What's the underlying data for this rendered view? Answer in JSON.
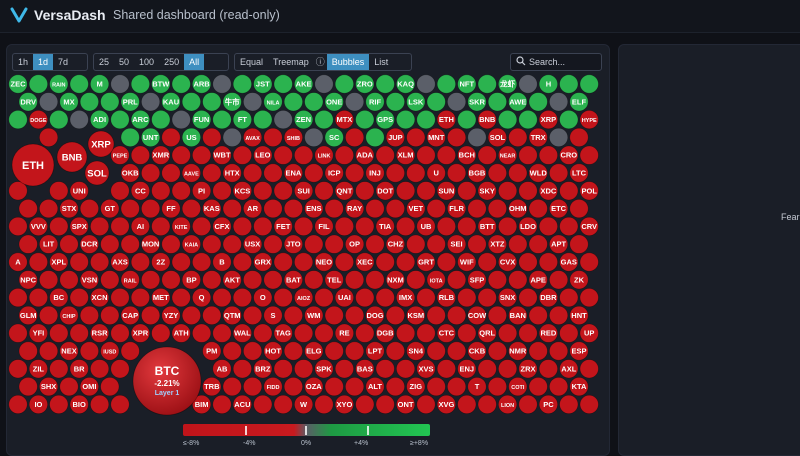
{
  "app": {
    "name": "VersaDash",
    "subtitle": "Shared dashboard (read-only)"
  },
  "toolbar": {
    "timeframes": [
      "1h",
      "1d",
      "7d"
    ],
    "active_timeframe": "1d",
    "counts": [
      "25",
      "50",
      "100",
      "250",
      "All"
    ],
    "active_count": "All",
    "views": [
      "Equal",
      "Treemap",
      "ⓘ",
      "Bubbles",
      "List"
    ],
    "active_view": "Bubbles",
    "search_placeholder": "Search..."
  },
  "side_panel": {
    "label": "Fear"
  },
  "btc": {
    "symbol": "BTC",
    "change": "-2.21%",
    "layer": "Layer 1"
  },
  "legend": {
    "labels": [
      "≤-8%",
      "-4%",
      "0%",
      "+4%",
      "≥+8%"
    ]
  },
  "colors": {
    "red": "#c3151b",
    "green": "#2bb34f",
    "gray": "#5b5f69",
    "accent": "#3e8fc0"
  },
  "bubbles": [
    {
      "s": "ZEC",
      "c": "green"
    },
    {
      "s": "RAIN",
      "c": "green"
    },
    {
      "s": "M",
      "c": "green"
    },
    {
      "s": "BTW",
      "c": "green"
    },
    {
      "s": "ARB",
      "c": "green"
    },
    {
      "s": "JST",
      "c": "green"
    },
    {
      "s": "AKE",
      "c": "green"
    },
    {
      "s": "ZRO",
      "c": "green"
    },
    {
      "s": "KAQ",
      "c": "green"
    },
    {
      "s": "NFT",
      "c": "green"
    },
    {
      "s": "龙虾",
      "c": "green"
    },
    {
      "s": "H",
      "c": "green"
    },
    {
      "s": "DRV",
      "c": "green"
    },
    {
      "s": "MX",
      "c": "green"
    },
    {
      "s": "PRL",
      "c": "green"
    },
    {
      "s": "KAU",
      "c": "green"
    },
    {
      "s": "牛市",
      "c": "green"
    },
    {
      "s": "NILA",
      "c": "green"
    },
    {
      "s": "ONE",
      "c": "green"
    },
    {
      "s": "RIF",
      "c": "green"
    },
    {
      "s": "LSK",
      "c": "green"
    },
    {
      "s": "SKR",
      "c": "green"
    },
    {
      "s": "AWE",
      "c": "green"
    },
    {
      "s": "ELF",
      "c": "green"
    },
    {
      "s": "DOGE",
      "c": "red"
    },
    {
      "s": "ADI",
      "c": "green"
    },
    {
      "s": "ARC",
      "c": "green"
    },
    {
      "s": "FUN",
      "c": "green"
    },
    {
      "s": "FT",
      "c": "green"
    },
    {
      "s": "ZEN",
      "c": "green"
    },
    {
      "s": "MTX",
      "c": "red"
    },
    {
      "s": "GPS",
      "c": "green"
    },
    {
      "s": "ETH",
      "c": "red"
    },
    {
      "s": "BNB",
      "c": "red"
    },
    {
      "s": "XRP",
      "c": "red"
    },
    {
      "s": "HYPE",
      "c": "red"
    },
    {
      "s": "UNT",
      "c": "green"
    },
    {
      "s": "US",
      "c": "green"
    },
    {
      "s": "AVAX",
      "c": "red"
    },
    {
      "s": "SHIB",
      "c": "red"
    },
    {
      "s": "SC",
      "c": "green"
    },
    {
      "s": "JUP",
      "c": "red"
    },
    {
      "s": "MNT",
      "c": "red"
    },
    {
      "s": "SOL",
      "c": "red"
    },
    {
      "s": "TRX",
      "c": "red"
    },
    {
      "s": "PEPE",
      "c": "red"
    },
    {
      "s": "XMR",
      "c": "red"
    },
    {
      "s": "WBT",
      "c": "red"
    },
    {
      "s": "LEO",
      "c": "red"
    },
    {
      "s": "LINK",
      "c": "red"
    },
    {
      "s": "ADA",
      "c": "red"
    },
    {
      "s": "XLM",
      "c": "red"
    },
    {
      "s": "BCH",
      "c": "red"
    },
    {
      "s": "NEAR",
      "c": "red"
    },
    {
      "s": "CRO",
      "c": "red"
    },
    {
      "s": "OKB",
      "c": "red"
    },
    {
      "s": "AAVE",
      "c": "red"
    },
    {
      "s": "HTX",
      "c": "red"
    },
    {
      "s": "ENA",
      "c": "red"
    },
    {
      "s": "ICP",
      "c": "red"
    },
    {
      "s": "INJ",
      "c": "red"
    },
    {
      "s": "U",
      "c": "red"
    },
    {
      "s": "BGB",
      "c": "red"
    },
    {
      "s": "WLD",
      "c": "red"
    },
    {
      "s": "LTC",
      "c": "red"
    },
    {
      "s": "UNI",
      "c": "red"
    },
    {
      "s": "CC",
      "c": "red"
    },
    {
      "s": "PI",
      "c": "red"
    },
    {
      "s": "KCS",
      "c": "red"
    },
    {
      "s": "SUI",
      "c": "red"
    },
    {
      "s": "QNT",
      "c": "red"
    },
    {
      "s": "DOT",
      "c": "red"
    },
    {
      "s": "SUN",
      "c": "red"
    },
    {
      "s": "SKY",
      "c": "red"
    },
    {
      "s": "XDC",
      "c": "red"
    },
    {
      "s": "POL",
      "c": "red"
    },
    {
      "s": "STX",
      "c": "red"
    },
    {
      "s": "GT",
      "c": "red"
    },
    {
      "s": "FF",
      "c": "red"
    },
    {
      "s": "KAS",
      "c": "red"
    },
    {
      "s": "AR",
      "c": "red"
    },
    {
      "s": "ENS",
      "c": "red"
    },
    {
      "s": "RAY",
      "c": "red"
    },
    {
      "s": "VET",
      "c": "red"
    },
    {
      "s": "FLR",
      "c": "red"
    },
    {
      "s": "OHM",
      "c": "red"
    },
    {
      "s": "ETC",
      "c": "red"
    },
    {
      "s": "VVV",
      "c": "red"
    },
    {
      "s": "SPX",
      "c": "red"
    },
    {
      "s": "AI",
      "c": "red"
    },
    {
      "s": "KITE",
      "c": "red"
    },
    {
      "s": "CFX",
      "c": "red"
    },
    {
      "s": "FET",
      "c": "red"
    },
    {
      "s": "FIL",
      "c": "red"
    },
    {
      "s": "TIA",
      "c": "red"
    },
    {
      "s": "UB",
      "c": "red"
    },
    {
      "s": "BTT",
      "c": "red"
    },
    {
      "s": "LDO",
      "c": "red"
    },
    {
      "s": "CRV",
      "c": "red"
    },
    {
      "s": "LIT",
      "c": "red"
    },
    {
      "s": "DCR",
      "c": "red"
    },
    {
      "s": "MON",
      "c": "red"
    },
    {
      "s": "KAIA",
      "c": "red"
    },
    {
      "s": "USX",
      "c": "red"
    },
    {
      "s": "JTO",
      "c": "red"
    },
    {
      "s": "OP",
      "c": "red"
    },
    {
      "s": "CHZ",
      "c": "red"
    },
    {
      "s": "SEI",
      "c": "red"
    },
    {
      "s": "XTZ",
      "c": "red"
    },
    {
      "s": "APT",
      "c": "red"
    },
    {
      "s": "A",
      "c": "red"
    },
    {
      "s": "XPL",
      "c": "red"
    },
    {
      "s": "AXS",
      "c": "red"
    },
    {
      "s": "2Z",
      "c": "red"
    },
    {
      "s": "B",
      "c": "red"
    },
    {
      "s": "GRX",
      "c": "red"
    },
    {
      "s": "NEO",
      "c": "red"
    },
    {
      "s": "XEC",
      "c": "red"
    },
    {
      "s": "GRT",
      "c": "red"
    },
    {
      "s": "WIF",
      "c": "red"
    },
    {
      "s": "CVX",
      "c": "red"
    },
    {
      "s": "GAS",
      "c": "red"
    },
    {
      "s": "NPC",
      "c": "red"
    },
    {
      "s": "VSN",
      "c": "red"
    },
    {
      "s": "RAIL",
      "c": "red"
    },
    {
      "s": "BP",
      "c": "red"
    },
    {
      "s": "AKT",
      "c": "red"
    },
    {
      "s": "BAT",
      "c": "red"
    },
    {
      "s": "TEL",
      "c": "red"
    },
    {
      "s": "NXM",
      "c": "red"
    },
    {
      "s": "IOTA",
      "c": "red"
    },
    {
      "s": "SFP",
      "c": "red"
    },
    {
      "s": "APE",
      "c": "red"
    },
    {
      "s": "ZK",
      "c": "red"
    },
    {
      "s": "BC",
      "c": "red"
    },
    {
      "s": "XCN",
      "c": "red"
    },
    {
      "s": "MET",
      "c": "red"
    },
    {
      "s": "Q",
      "c": "red"
    },
    {
      "s": "O",
      "c": "red"
    },
    {
      "s": "AIOZ",
      "c": "red"
    },
    {
      "s": "UAI",
      "c": "red"
    },
    {
      "s": "IMX",
      "c": "red"
    },
    {
      "s": "RLB",
      "c": "red"
    },
    {
      "s": "SNX",
      "c": "red"
    },
    {
      "s": "DBR",
      "c": "red"
    },
    {
      "s": "GLM",
      "c": "red"
    },
    {
      "s": "CHIP",
      "c": "red"
    },
    {
      "s": "CAP",
      "c": "red"
    },
    {
      "s": "YZY",
      "c": "red"
    },
    {
      "s": "QTM",
      "c": "red"
    },
    {
      "s": "S",
      "c": "red"
    },
    {
      "s": "WM",
      "c": "red"
    },
    {
      "s": "DOG",
      "c": "red"
    },
    {
      "s": "KSM",
      "c": "red"
    },
    {
      "s": "COW",
      "c": "red"
    },
    {
      "s": "BAN",
      "c": "red"
    },
    {
      "s": "HNT",
      "c": "red"
    },
    {
      "s": "YFI",
      "c": "red"
    },
    {
      "s": "RSR",
      "c": "red"
    },
    {
      "s": "XPR",
      "c": "red"
    },
    {
      "s": "ATH",
      "c": "red"
    },
    {
      "s": "WAL",
      "c": "red"
    },
    {
      "s": "TAG",
      "c": "red"
    },
    {
      "s": "RE",
      "c": "red"
    },
    {
      "s": "DGB",
      "c": "red"
    },
    {
      "s": "CTC",
      "c": "red"
    },
    {
      "s": "QRL",
      "c": "red"
    },
    {
      "s": "RED",
      "c": "red"
    },
    {
      "s": "UP",
      "c": "red"
    },
    {
      "s": "NEX",
      "c": "red"
    },
    {
      "s": "IUSD",
      "c": "red"
    },
    {
      "s": "PM",
      "c": "red"
    },
    {
      "s": "HOT",
      "c": "red"
    },
    {
      "s": "ELG",
      "c": "red"
    },
    {
      "s": "LPT",
      "c": "red"
    },
    {
      "s": "SN4",
      "c": "red"
    },
    {
      "s": "CKB",
      "c": "red"
    },
    {
      "s": "NMR",
      "c": "red"
    },
    {
      "s": "ESP",
      "c": "red"
    },
    {
      "s": "ZIL",
      "c": "red"
    },
    {
      "s": "BR",
      "c": "red"
    },
    {
      "s": "AB",
      "c": "red"
    },
    {
      "s": "BRZ",
      "c": "red"
    },
    {
      "s": "SPK",
      "c": "red"
    },
    {
      "s": "BAS",
      "c": "red"
    },
    {
      "s": "XVS",
      "c": "red"
    },
    {
      "s": "ENJ",
      "c": "red"
    },
    {
      "s": "ZRX",
      "c": "red"
    },
    {
      "s": "AXL",
      "c": "red"
    },
    {
      "s": "SHX",
      "c": "red"
    },
    {
      "s": "OMI",
      "c": "red"
    },
    {
      "s": "TRB",
      "c": "red"
    },
    {
      "s": "FIDD",
      "c": "red"
    },
    {
      "s": "OZA",
      "c": "red"
    },
    {
      "s": "ALT",
      "c": "red"
    },
    {
      "s": "ZIG",
      "c": "red"
    },
    {
      "s": "T",
      "c": "red"
    },
    {
      "s": "COTI",
      "c": "red"
    },
    {
      "s": "KTA",
      "c": "red"
    },
    {
      "s": "IO",
      "c": "red"
    },
    {
      "s": "BIO",
      "c": "red"
    },
    {
      "s": "BIM",
      "c": "red"
    },
    {
      "s": "ACU",
      "c": "red"
    },
    {
      "s": "W",
      "c": "red"
    },
    {
      "s": "XYO",
      "c": "red"
    },
    {
      "s": "ONT",
      "c": "red"
    },
    {
      "s": "XVG",
      "c": "red"
    },
    {
      "s": "LION",
      "c": "red"
    },
    {
      "s": "PC",
      "c": "red"
    }
  ]
}
